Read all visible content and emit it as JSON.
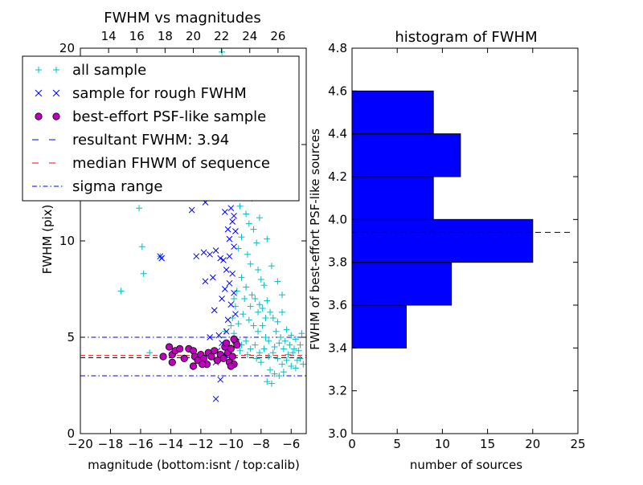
{
  "chart_data": [
    {
      "type": "scatter",
      "title": "FWHM vs magnitudes",
      "xlabel": "magnitude (bottom:isnt / top:calib)",
      "ylabel": "FWHM (pix)",
      "xlim": [
        -20,
        -5
      ],
      "ylim": [
        0,
        20
      ],
      "top_xlim": [
        12,
        28
      ],
      "x_ticks": [
        -20,
        -18,
        -16,
        -14,
        -12,
        -10,
        -8,
        -6
      ],
      "x_tick_labels": [
        "−20",
        "−18",
        "−16",
        "−14",
        "−12",
        "−10",
        "−8",
        "−6"
      ],
      "top_ticks": [
        14,
        16,
        18,
        20,
        22,
        24,
        26
      ],
      "top_tick_labels": [
        "14",
        "16",
        "18",
        "20",
        "22",
        "24",
        "26"
      ],
      "y_ticks": [
        0,
        5,
        10,
        15,
        20
      ],
      "y_tick_labels": [
        "0",
        "5",
        "10",
        "15",
        "20"
      ],
      "legend_position": "top-left",
      "legend": [
        {
          "label": "all sample",
          "marker": "plus",
          "color": "#00bfbf"
        },
        {
          "label": "sample for rough FWHM",
          "marker": "x",
          "color": "#0000ff"
        },
        {
          "label": "best-effort PSF-like sample",
          "marker": "circle",
          "color": "#bf00bf"
        },
        {
          "label": "resultant FWHM: 3.94",
          "marker": "dashed",
          "color": "#0000ff"
        },
        {
          "label": "median FHWM of sequence",
          "marker": "dashed",
          "color": "#ff0000"
        },
        {
          "label": "sigma range",
          "marker": "dashdot",
          "color": "#0000ff"
        }
      ],
      "lines": {
        "resultant_fwhm": 3.94,
        "median_fwhm_of_sequence": 4.05,
        "sigma_range": [
          3.0,
          5.0
        ]
      },
      "series": [
        {
          "name": "all sample",
          "marker": "plus",
          "color": "#00bfbf",
          "points": [
            [
              -17.3,
              7.4
            ],
            [
              -16.1,
              11.7
            ],
            [
              -15.9,
              9.7
            ],
            [
              -15.8,
              8.3
            ],
            [
              -15.4,
              4.2
            ],
            [
              -14.7,
              9.2
            ],
            [
              -10.6,
              19.8
            ],
            [
              -10.2,
              17.1
            ],
            [
              -9.6,
              15.5
            ],
            [
              -9.4,
              14.2
            ],
            [
              -9.2,
              13.2
            ],
            [
              -9.1,
              12.5
            ],
            [
              -9.4,
              11.8
            ],
            [
              -9.0,
              11.4
            ],
            [
              -8.8,
              10.9
            ],
            [
              -8.6,
              12.2
            ],
            [
              -8.5,
              10.6
            ],
            [
              -8.3,
              9.9
            ],
            [
              -9.3,
              10.2
            ],
            [
              -9.5,
              9.6
            ],
            [
              -8.9,
              9.3
            ],
            [
              -8.7,
              8.8
            ],
            [
              -8.2,
              8.5
            ],
            [
              -8.0,
              8.0
            ],
            [
              -7.8,
              7.7
            ],
            [
              -9.3,
              8.1
            ],
            [
              -9.6,
              7.4
            ],
            [
              -9.0,
              7.6
            ],
            [
              -8.6,
              7.2
            ],
            [
              -8.4,
              7.0
            ],
            [
              -8.1,
              6.7
            ],
            [
              -7.9,
              6.5
            ],
            [
              -7.6,
              6.9
            ],
            [
              -7.4,
              6.3
            ],
            [
              -7.2,
              6.0
            ],
            [
              -6.9,
              5.8
            ],
            [
              -6.6,
              6.3
            ],
            [
              -6.3,
              5.4
            ],
            [
              -6.0,
              5.1
            ],
            [
              -5.7,
              4.9
            ],
            [
              -5.4,
              4.6
            ],
            [
              -5.3,
              5.2
            ],
            [
              -9.7,
              6.6
            ],
            [
              -9.9,
              6.0
            ],
            [
              -9.5,
              5.7
            ],
            [
              -9.2,
              6.2
            ],
            [
              -8.8,
              5.9
            ],
            [
              -8.5,
              5.6
            ],
            [
              -8.2,
              5.3
            ],
            [
              -7.9,
              5.6
            ],
            [
              -7.7,
              5.0
            ],
            [
              -7.5,
              4.8
            ],
            [
              -7.1,
              4.5
            ],
            [
              -6.8,
              4.7
            ],
            [
              -6.5,
              4.4
            ],
            [
              -6.2,
              4.1
            ],
            [
              -5.9,
              4.2
            ],
            [
              -5.6,
              3.8
            ],
            [
              -5.4,
              3.9
            ],
            [
              -9.8,
              5.2
            ],
            [
              -9.6,
              4.9
            ],
            [
              -9.3,
              4.6
            ],
            [
              -9.0,
              4.8
            ],
            [
              -8.7,
              4.4
            ],
            [
              -8.4,
              4.6
            ],
            [
              -8.1,
              4.2
            ],
            [
              -7.8,
              4.4
            ],
            [
              -7.5,
              4.0
            ],
            [
              -7.2,
              4.2
            ],
            [
              -6.9,
              3.9
            ],
            [
              -6.6,
              3.6
            ],
            [
              -6.3,
              3.8
            ],
            [
              -6.0,
              3.5
            ],
            [
              -5.7,
              3.4
            ],
            [
              -7.4,
              3.3
            ],
            [
              -7.1,
              3.1
            ],
            [
              -6.8,
              3.0
            ],
            [
              -7.6,
              2.7
            ],
            [
              -7.3,
              2.6
            ],
            [
              -6.5,
              3.2
            ],
            [
              -8.0,
              3.7
            ],
            [
              -8.3,
              3.9
            ],
            [
              -8.9,
              4.1
            ],
            [
              -9.4,
              4.3
            ],
            [
              -10.1,
              4.6
            ],
            [
              -10.4,
              5.3
            ],
            [
              -10.0,
              5.6
            ],
            [
              -9.8,
              7.0
            ],
            [
              -9.1,
              7.0
            ],
            [
              -8.7,
              6.6
            ],
            [
              -8.2,
              6.3
            ],
            [
              -7.7,
              6.0
            ],
            [
              -7.0,
              5.3
            ],
            [
              -6.7,
              5.0
            ],
            [
              -6.4,
              4.8
            ],
            [
              -6.1,
              4.6
            ],
            [
              -5.8,
              4.4
            ],
            [
              -5.5,
              4.3
            ],
            [
              -5.2,
              3.6
            ],
            [
              -8.6,
              13.5
            ],
            [
              -8.1,
              11.2
            ],
            [
              -7.6,
              10.1
            ],
            [
              -7.3,
              8.7
            ],
            [
              -6.9,
              7.9
            ],
            [
              -6.6,
              7.2
            ],
            [
              -8.8,
              14.8
            ],
            [
              -9.2,
              16.2
            ],
            [
              -9.7,
              17.8
            ],
            [
              -10.4,
              18.5
            ]
          ]
        },
        {
          "name": "sample for rough FWHM",
          "marker": "x",
          "color": "#0000ff",
          "points": [
            [
              -14.7,
              9.2
            ],
            [
              -14.6,
              9.1
            ],
            [
              -12.6,
              11.6
            ],
            [
              -11.7,
              12.0
            ],
            [
              -10.4,
              11.5
            ],
            [
              -10.0,
              11.7
            ],
            [
              -9.8,
              11.3
            ],
            [
              -9.9,
              11.0
            ],
            [
              -10.2,
              10.6
            ],
            [
              -9.7,
              10.5
            ],
            [
              -10.1,
              10.1
            ],
            [
              -9.8,
              9.7
            ],
            [
              -11.0,
              9.5
            ],
            [
              -10.7,
              9.1
            ],
            [
              -10.5,
              9.0
            ],
            [
              -10.1,
              9.2
            ],
            [
              -11.4,
              9.3
            ],
            [
              -11.8,
              9.4
            ],
            [
              -12.3,
              9.2
            ],
            [
              -10.3,
              8.5
            ],
            [
              -9.9,
              8.3
            ],
            [
              -10.1,
              7.8
            ],
            [
              -10.4,
              7.5
            ],
            [
              -9.8,
              7.3
            ],
            [
              -10.6,
              7.0
            ],
            [
              -11.2,
              8.1
            ],
            [
              -11.7,
              7.9
            ],
            [
              -10.0,
              6.7
            ],
            [
              -9.7,
              6.2
            ],
            [
              -10.2,
              5.9
            ],
            [
              -11.1,
              6.4
            ],
            [
              -10.3,
              5.3
            ],
            [
              -10.8,
              5.1
            ],
            [
              -11.4,
              5.0
            ],
            [
              -10.6,
              4.7
            ],
            [
              -10.9,
              4.3
            ],
            [
              -10.4,
              4.1
            ],
            [
              -11.0,
              3.7
            ],
            [
              -10.7,
              2.8
            ],
            [
              -11.0,
              1.8
            ]
          ]
        },
        {
          "name": "best-effort PSF-like sample",
          "marker": "circle",
          "color": "#bf00bf",
          "points": [
            [
              -14.5,
              4.0
            ],
            [
              -14.1,
              4.5
            ],
            [
              -13.9,
              4.1
            ],
            [
              -13.7,
              4.3
            ],
            [
              -13.9,
              3.7
            ],
            [
              -13.4,
              4.4
            ],
            [
              -12.8,
              4.4
            ],
            [
              -12.5,
              4.3
            ],
            [
              -12.4,
              4.0
            ],
            [
              -12.2,
              3.8
            ],
            [
              -12.5,
              3.5
            ],
            [
              -12.0,
              4.1
            ],
            [
              -11.8,
              3.9
            ],
            [
              -11.6,
              3.6
            ],
            [
              -11.5,
              4.2
            ],
            [
              -11.3,
              4.0
            ],
            [
              -11.1,
              4.3
            ],
            [
              -10.9,
              3.8
            ],
            [
              -10.7,
              4.1
            ],
            [
              -10.5,
              3.9
            ],
            [
              -10.4,
              4.5
            ],
            [
              -10.3,
              4.7
            ],
            [
              -10.2,
              4.2
            ],
            [
              -10.1,
              3.7
            ],
            [
              -10.0,
              4.4
            ],
            [
              -9.9,
              4.0
            ],
            [
              -9.8,
              3.6
            ],
            [
              -9.7,
              4.8
            ],
            [
              -9.8,
              4.9
            ],
            [
              -9.6,
              4.6
            ],
            [
              -10.0,
              3.5
            ],
            [
              -11.9,
              3.6
            ],
            [
              -13.1,
              3.9
            ]
          ]
        }
      ]
    },
    {
      "type": "histogram",
      "orientation": "horizontal",
      "title": "histogram of FWHM",
      "xlabel": "number of sources",
      "ylabel": "FWHM of best-effort PSF-like sources",
      "xlim": [
        0,
        25
      ],
      "ylim": [
        3.0,
        4.8
      ],
      "x_ticks": [
        0,
        5,
        10,
        15,
        20,
        25
      ],
      "x_tick_labels": [
        "0",
        "5",
        "10",
        "15",
        "20",
        "25"
      ],
      "y_ticks": [
        3.0,
        3.2,
        3.4,
        3.6,
        3.8,
        4.0,
        4.2,
        4.4,
        4.6,
        4.8
      ],
      "y_tick_labels": [
        "3.0",
        "3.2",
        "3.4",
        "3.6",
        "3.8",
        "4.0",
        "4.2",
        "4.4",
        "4.6",
        "4.8"
      ],
      "bar_color": "#0000ff",
      "bins": [
        {
          "from": 3.4,
          "to": 3.6,
          "count": 6
        },
        {
          "from": 3.6,
          "to": 3.8,
          "count": 11
        },
        {
          "from": 3.8,
          "to": 4.0,
          "count": 20
        },
        {
          "from": 4.0,
          "to": 4.2,
          "count": 9
        },
        {
          "from": 4.2,
          "to": 4.4,
          "count": 12
        },
        {
          "from": 4.4,
          "to": 4.6,
          "count": 9
        }
      ],
      "reference_line": 3.94
    }
  ]
}
